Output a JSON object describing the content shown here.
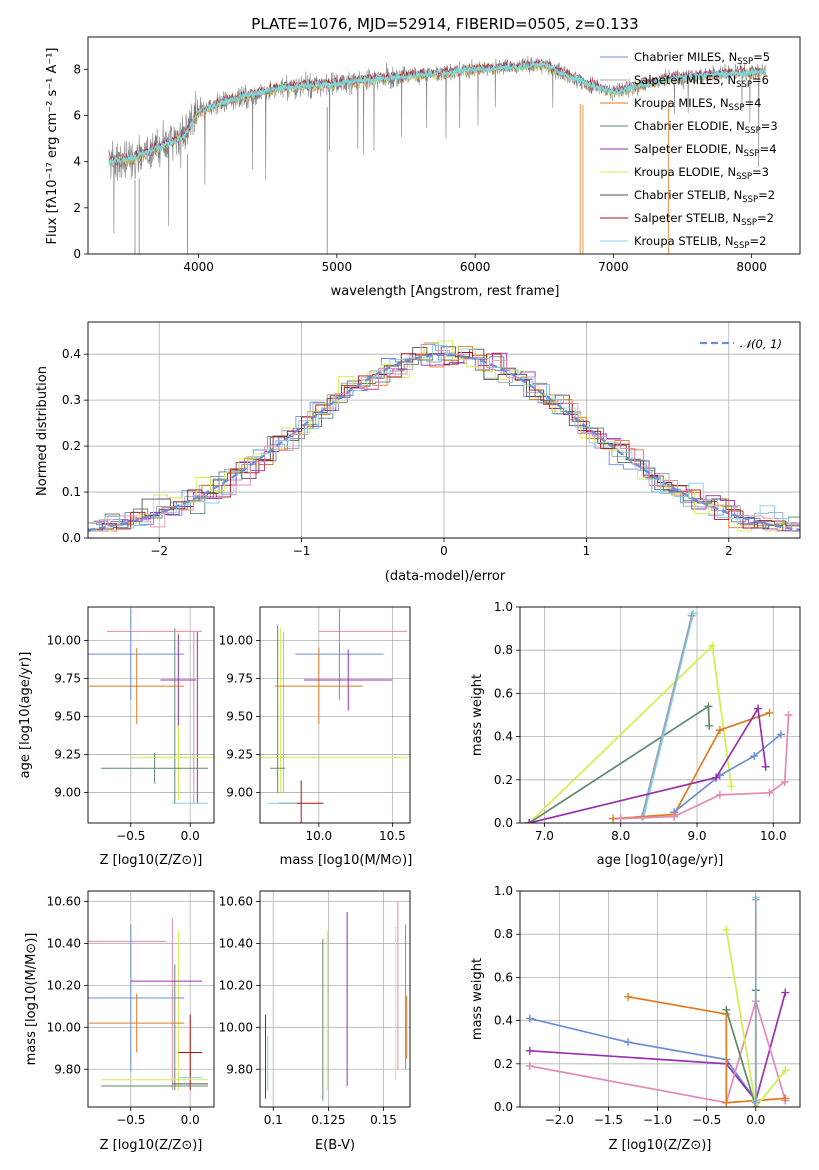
{
  "colors": {
    "chabrier_miles": "#6a8fd8",
    "salpeter_miles": "#9aa6b2",
    "kroupa_miles": "#e07b20",
    "chabrier_elodie": "#5f8a6a",
    "salpeter_elodie": "#9a2fb0",
    "kroupa_elodie": "#d4ee4a",
    "chabrier_stelib": "#555555",
    "salpeter_stelib": "#b01010",
    "kroupa_stelib": "#7fd0f0",
    "pink": "#e688b8",
    "spectrum": "#808080",
    "fit": "#7fd8d8",
    "normal_curve": "#6a8fd8"
  },
  "chart_data": [
    {
      "id": "spectrum",
      "type": "line",
      "title": "PLATE=1076, MJD=52914, FIBERID=0505, z=0.133",
      "xlabel": "wavelength [Angstrom, rest frame]",
      "ylabel": "Flux [fλ10⁻¹⁷ erg cm⁻² s⁻¹ A⁻¹]",
      "xlim": [
        3200,
        8350
      ],
      "ylim": [
        0,
        9.4
      ],
      "xticks": [
        "4000",
        "5000",
        "6000",
        "7000",
        "8000"
      ],
      "yticks": [
        "0",
        "2",
        "4",
        "6",
        "8"
      ],
      "continuum": [
        [
          3350,
          4.0
        ],
        [
          3500,
          4.1
        ],
        [
          3700,
          4.6
        ],
        [
          3900,
          5.1
        ],
        [
          4000,
          6.2
        ],
        [
          4300,
          6.8
        ],
        [
          4600,
          7.2
        ],
        [
          5000,
          7.4
        ],
        [
          5500,
          7.7
        ],
        [
          6000,
          8.0
        ],
        [
          6500,
          8.2
        ],
        [
          6800,
          7.4
        ],
        [
          7000,
          7.0
        ],
        [
          7400,
          7.6
        ],
        [
          7800,
          7.8
        ],
        [
          8100,
          7.9
        ]
      ],
      "legend": [
        {
          "label": "Chabrier MILES, N_SSP=5",
          "color": "chabrier_miles"
        },
        {
          "label": "Salpeter MILES, N_SSP=6",
          "color": "salpeter_miles"
        },
        {
          "label": "Kroupa MILES, N_SSP=4",
          "color": "kroupa_miles"
        },
        {
          "label": "Chabrier ELODIE, N_SSP=3",
          "color": "chabrier_elodie"
        },
        {
          "label": "Salpeter ELODIE, N_SSP=4",
          "color": "salpeter_elodie"
        },
        {
          "label": "Kroupa ELODIE, N_SSP=3",
          "color": "kroupa_elodie"
        },
        {
          "label": "Chabrier STELIB, N_SSP=2",
          "color": "chabrier_stelib"
        },
        {
          "label": "Salpeter STELIB, N_SSP=2",
          "color": "salpeter_stelib"
        },
        {
          "label": "Kroupa STELIB, N_SSP=2",
          "color": "kroupa_stelib"
        }
      ]
    },
    {
      "id": "residuals",
      "type": "line",
      "xlabel": "(data-model)/error",
      "ylabel": "Normed distribution",
      "xlim": [
        -2.5,
        2.5
      ],
      "ylim": [
        0,
        0.47
      ],
      "xticks": [
        -2,
        -1,
        0,
        1,
        2
      ],
      "yticks": [
        0.0,
        0.1,
        0.2,
        0.3,
        0.4
      ],
      "legend": [
        {
          "label": "𝒩(0, 1)",
          "color": "normal_curve"
        }
      ],
      "grid": true
    },
    {
      "id": "age_vs_Z",
      "type": "scatter",
      "xlabel": "Z [log10(Z/Z⊙)]",
      "ylabel": "age  [log10(age/yr)]",
      "xlim": [
        -0.86,
        0.2
      ],
      "ylim": [
        8.8,
        10.22
      ],
      "xticks": [
        -0.5,
        0.0
      ],
      "yticks": [
        9.0,
        9.25,
        9.5,
        9.75,
        10.0
      ],
      "points": [
        {
          "x": -0.3,
          "y": 10.06,
          "xerr": 0.4,
          "yerr": 0,
          "color": "pink"
        },
        {
          "x": -0.5,
          "y": 9.91,
          "xerr": 0.45,
          "yerr": 0.3,
          "color": "chabrier_miles"
        },
        {
          "x": -0.1,
          "y": 9.74,
          "xerr": 0.15,
          "yerr": 0.3,
          "color": "salpeter_elodie"
        },
        {
          "x": -0.45,
          "y": 9.7,
          "xerr": 0.4,
          "yerr": 0.25,
          "color": "kroupa_miles"
        },
        {
          "x": -0.1,
          "y": 9.23,
          "xerr": 0.4,
          "yerr": 0.2,
          "color": "kroupa_elodie"
        },
        {
          "x": -0.3,
          "y": 9.16,
          "xerr": 0.45,
          "yerr": 0.1,
          "color": "chabrier_elodie"
        },
        {
          "x": 0.0,
          "y": 8.93,
          "xerr": 0.15,
          "yerr": 0.0,
          "color": "kroupa_stelib"
        }
      ],
      "vlines": [
        {
          "x": -0.13,
          "y0": 8.93,
          "y1": 10.08,
          "color": "chabrier_elodie"
        },
        {
          "x": -0.1,
          "y0": 8.95,
          "y1": 10.06,
          "color": "kroupa_elodie"
        },
        {
          "x": 0.03,
          "y0": 8.93,
          "y1": 10.06,
          "color": "pink"
        },
        {
          "x": 0.06,
          "y0": 8.93,
          "y1": 10.06,
          "color": "salpeter_elodie"
        }
      ],
      "grid": true
    },
    {
      "id": "age_vs_mass",
      "type": "scatter",
      "xlabel": "mass [log10(M/M⊙)]",
      "ylabel": "",
      "xlim": [
        9.6,
        10.62
      ],
      "ylim": [
        8.8,
        10.22
      ],
      "xticks": [
        10.0,
        10.5
      ],
      "yticks": [
        9.0,
        9.25,
        9.5,
        9.75,
        10.0
      ],
      "points": [
        {
          "x": 10.3,
          "y": 10.06,
          "xerr": 0.3,
          "yerr": 0,
          "color": "pink"
        },
        {
          "x": 10.14,
          "y": 9.91,
          "xerr": 0.3,
          "yerr": 0.3,
          "color": "chabrier_miles"
        },
        {
          "x": 10.0,
          "y": 9.7,
          "xerr": 0.3,
          "yerr": 0.25,
          "color": "kroupa_miles"
        },
        {
          "x": 10.2,
          "y": 9.74,
          "xerr": 0.3,
          "yerr": 0.2,
          "color": "salpeter_elodie"
        },
        {
          "x": 10.0,
          "y": 9.23,
          "xerr": 0.6,
          "yerr": 0,
          "color": "kroupa_elodie"
        },
        {
          "x": 9.72,
          "y": 9.16,
          "xerr": 0.05,
          "yerr": 0,
          "color": "chabrier_elodie"
        },
        {
          "x": 9.88,
          "y": 8.93,
          "xerr": 0.15,
          "yerr": 0.15,
          "color": "salpeter_stelib"
        },
        {
          "x": 9.75,
          "y": 8.93,
          "xerr": 0.1,
          "yerr": 0,
          "color": "kroupa_stelib"
        }
      ],
      "vlines": [
        {
          "x": 9.72,
          "y0": 9.0,
          "y1": 10.1,
          "color": "chabrier_elodie"
        },
        {
          "x": 9.74,
          "y0": 9.0,
          "y1": 10.08,
          "color": "kroupa_elodie"
        },
        {
          "x": 9.76,
          "y0": 9.0,
          "y1": 10.06,
          "color": "kroupa_stelib"
        }
      ],
      "grid": true
    },
    {
      "id": "weight_vs_age",
      "type": "line",
      "xlabel": "age  [log10(age/yr)]",
      "ylabel": "mass weight",
      "xlim": [
        6.68,
        10.35
      ],
      "ylim": [
        0,
        1.0
      ],
      "xticks": [
        7,
        8,
        9,
        10
      ],
      "yticks": [
        0.0,
        0.2,
        0.4,
        0.6,
        0.8,
        1.0
      ],
      "series": [
        {
          "color": "kroupa_elodie",
          "x": [
            6.8,
            9.2,
            9.45
          ],
          "y": [
            0.0,
            0.82,
            0.17
          ]
        },
        {
          "color": "chabrier_elodie",
          "x": [
            6.8,
            9.15,
            9.16
          ],
          "y": [
            0.0,
            0.54,
            0.45
          ]
        },
        {
          "color": "kroupa_stelib",
          "x": [
            8.3,
            8.95
          ],
          "y": [
            0.03,
            0.97
          ]
        },
        {
          "color": "salpeter_miles",
          "x": [
            8.28,
            8.93
          ],
          "y": [
            0.03,
            0.96
          ]
        },
        {
          "color": "kroupa_miles",
          "x": [
            7.9,
            8.7,
            9.3,
            9.95
          ],
          "y": [
            0.02,
            0.04,
            0.43,
            0.51
          ]
        },
        {
          "color": "chabrier_miles",
          "x": [
            8.7,
            9.3,
            9.75,
            10.1
          ],
          "y": [
            0.05,
            0.22,
            0.31,
            0.41
          ]
        },
        {
          "color": "salpeter_elodie",
          "x": [
            6.8,
            9.25,
            9.8,
            9.9
          ],
          "y": [
            0.0,
            0.21,
            0.53,
            0.26
          ]
        },
        {
          "color": "pink",
          "x": [
            8.0,
            8.7,
            9.3,
            9.95,
            10.15,
            10.2
          ],
          "y": [
            0.02,
            0.03,
            0.13,
            0.14,
            0.19,
            0.5
          ]
        }
      ],
      "grid": true
    },
    {
      "id": "mass_vs_Z",
      "type": "scatter",
      "xlabel": "Z [log10(Z/Z⊙)]",
      "ylabel": "mass [log10(M/M⊙)]",
      "xlim": [
        -0.86,
        0.2
      ],
      "ylim": [
        9.62,
        10.65
      ],
      "xticks": [
        -0.5,
        0.0
      ],
      "yticks": [
        9.8,
        10.0,
        10.2,
        10.4,
        10.6
      ],
      "points": [
        {
          "x": -0.55,
          "y": 10.41,
          "xerr": 0.35,
          "yerr": 0,
          "color": "pink"
        },
        {
          "x": -0.5,
          "y": 10.14,
          "xerr": 0.45,
          "yerr": 0.35,
          "color": "chabrier_miles"
        },
        {
          "x": -0.45,
          "y": 10.02,
          "xerr": 0.4,
          "yerr": 0.14,
          "color": "kroupa_miles"
        },
        {
          "x": -0.2,
          "y": 10.22,
          "xerr": 0.3,
          "yerr": 0,
          "color": "salpeter_elodie"
        },
        {
          "x": 0.0,
          "y": 9.88,
          "xerr": 0.1,
          "yerr": 0.18,
          "color": "salpeter_stelib"
        },
        {
          "x": -0.3,
          "y": 9.75,
          "xerr": 0.45,
          "yerr": 0,
          "color": "kroupa_elodie"
        },
        {
          "x": -0.3,
          "y": 9.72,
          "xerr": 0.45,
          "yerr": 0,
          "color": "chabrier_elodie"
        },
        {
          "x": 0.0,
          "y": 9.73,
          "xerr": 0.15,
          "yerr": 0,
          "color": "chabrier_stelib"
        },
        {
          "x": 0.0,
          "y": 9.76,
          "xerr": 0.1,
          "yerr": 0,
          "color": "kroupa_stelib"
        }
      ],
      "vlines": [
        {
          "x": -0.1,
          "y0": 9.7,
          "y1": 10.46,
          "color": "kroupa_elodie"
        },
        {
          "x": -0.15,
          "y0": 9.7,
          "y1": 10.52,
          "color": "pink"
        },
        {
          "x": -0.13,
          "y0": 9.7,
          "y1": 10.3,
          "color": "chabrier_elodie"
        }
      ],
      "grid": true
    },
    {
      "id": "mass_vs_ebv",
      "type": "scatter",
      "xlabel": "E(B-V)",
      "ylabel": "",
      "xlim": [
        0.094,
        0.162
      ],
      "ylim": [
        9.62,
        10.65
      ],
      "xticks": [
        0.1,
        0.125,
        0.15
      ],
      "yticks": [
        9.8,
        10.0,
        10.2,
        10.4,
        10.6
      ],
      "vlines": [
        {
          "x": 0.0965,
          "y0": 9.66,
          "y1": 10.06,
          "color": "salpeter_stelib"
        },
        {
          "x": 0.0975,
          "y0": 9.7,
          "y1": 9.96,
          "color": "kroupa_stelib"
        },
        {
          "x": 0.1225,
          "y0": 9.65,
          "y1": 10.42,
          "color": "chabrier_elodie"
        },
        {
          "x": 0.1245,
          "y0": 9.7,
          "y1": 10.46,
          "color": "kroupa_elodie"
        },
        {
          "x": 0.1335,
          "y0": 9.72,
          "y1": 10.55,
          "color": "salpeter_elodie"
        },
        {
          "x": 0.1555,
          "y0": 9.75,
          "y1": 10.48,
          "color": "kroupa_elodie"
        },
        {
          "x": 0.1565,
          "y0": 9.8,
          "y1": 10.6,
          "color": "pink"
        },
        {
          "x": 0.16,
          "y0": 9.8,
          "y1": 10.49,
          "color": "chabrier_miles"
        },
        {
          "x": 0.1605,
          "y0": 9.85,
          "y1": 10.15,
          "color": "kroupa_miles"
        }
      ],
      "grid": true
    },
    {
      "id": "weight_vs_Z",
      "type": "line",
      "xlabel": "Z [log10(Z/Z⊙)]",
      "ylabel": "mass weight",
      "xlim": [
        -2.4,
        0.45
      ],
      "ylim": [
        0,
        1.0
      ],
      "xticks": [
        -2.0,
        -1.5,
        -1.0,
        -0.5,
        0.0
      ],
      "yticks": [
        0.0,
        0.2,
        0.4,
        0.6,
        0.8,
        1.0
      ],
      "series": [
        {
          "color": "chabrier_miles",
          "x": [
            -2.3,
            -1.3,
            -0.3,
            0.0
          ],
          "y": [
            0.41,
            0.3,
            0.22,
            0.03
          ]
        },
        {
          "color": "salpeter_elodie",
          "x": [
            -2.3,
            -0.3,
            0.0,
            0.3
          ],
          "y": [
            0.26,
            0.2,
            0.03,
            0.53
          ]
        },
        {
          "color": "pink",
          "x": [
            -2.3,
            -0.3,
            0.0,
            0.3
          ],
          "y": [
            0.19,
            0.02,
            0.49,
            0.03
          ]
        },
        {
          "color": "kroupa_miles",
          "x": [
            -1.3,
            -0.3,
            -0.3,
            0.3
          ],
          "y": [
            0.51,
            0.43,
            0.02,
            0.04
          ]
        },
        {
          "color": "kroupa_elodie",
          "x": [
            -0.3,
            0.0,
            0.3
          ],
          "y": [
            0.82,
            0.0,
            0.17
          ]
        },
        {
          "color": "chabrier_elodie",
          "x": [
            -0.3,
            0.0,
            0.0
          ],
          "y": [
            0.45,
            0.0,
            0.54
          ]
        },
        {
          "color": "kroupa_stelib",
          "x": [
            0.0,
            0.0
          ],
          "y": [
            0.03,
            0.97
          ]
        },
        {
          "color": "salpeter_miles",
          "x": [
            0.0,
            0.0
          ],
          "y": [
            0.02,
            0.96
          ]
        }
      ],
      "grid": true
    }
  ]
}
